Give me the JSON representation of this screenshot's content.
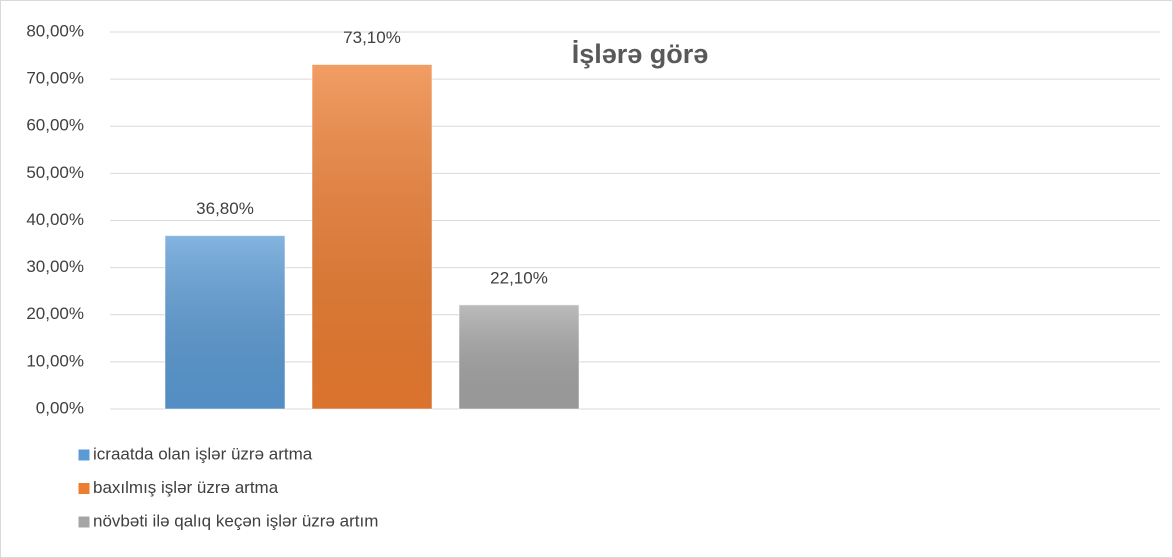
{
  "chart_data": {
    "type": "bar",
    "title": "İşlərə görə",
    "categories": [
      null
    ],
    "series": [
      {
        "name": "icraatda olan işlər üzrə artma",
        "color": "#5b9bd5",
        "values": [
          36.8
        ],
        "value_labels": [
          "36,80%"
        ]
      },
      {
        "name": "baxılmış işlər üzrə artma",
        "color": "#ed7d31",
        "values": [
          73.1
        ],
        "value_labels": [
          "73,10%"
        ]
      },
      {
        "name": "növbəti ilə qalıq keçən işlər üzrə artım",
        "color": "#a5a5a5",
        "values": [
          22.1
        ],
        "value_labels": [
          "22,10%"
        ]
      }
    ],
    "ylim": [
      0,
      80
    ],
    "yticks": [
      {
        "value": 0,
        "label": "0,00%"
      },
      {
        "value": 10,
        "label": "10,00%"
      },
      {
        "value": 20,
        "label": "20,00%"
      },
      {
        "value": 30,
        "label": "30,00%"
      },
      {
        "value": 40,
        "label": "40,00%"
      },
      {
        "value": 50,
        "label": "50,00%"
      },
      {
        "value": 60,
        "label": "60,00%"
      },
      {
        "value": 70,
        "label": "70,00%"
      },
      {
        "value": 80,
        "label": "80,00%"
      }
    ],
    "grid": true,
    "legend": "bottom-left"
  }
}
